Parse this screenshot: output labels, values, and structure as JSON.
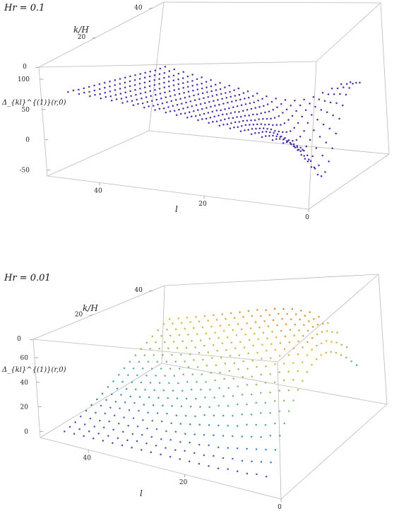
{
  "chart_data": [
    {
      "type": "scatter",
      "style": "3d-point-surface",
      "title": "Hr = 0.1",
      "xlabel": "k/H",
      "ylabel": "l",
      "zlabel": "Δ_{kl}^{(1)}(r,0)",
      "x_ticks": [
        "0",
        "20",
        "40"
      ],
      "y_ticks": [
        "40",
        "20",
        "0"
      ],
      "z_ticks": [
        "100",
        "50",
        "0",
        "-50"
      ],
      "xlim": [
        0,
        44
      ],
      "ylim": [
        0,
        50
      ],
      "zlim": [
        -60,
        120
      ],
      "coloring": "single color",
      "point_color": "#4a2ca8",
      "grid": false,
      "legend": "none",
      "x_values": [
        2,
        4,
        6,
        8,
        10,
        12,
        14,
        16,
        18,
        20,
        22,
        24,
        26,
        28,
        30,
        32,
        34,
        36,
        38,
        40
      ],
      "l_values": [
        4,
        6,
        8,
        10,
        12,
        14,
        16,
        18,
        20,
        22,
        24,
        26,
        28,
        30,
        32,
        34,
        36,
        38,
        40,
        42,
        44,
        46
      ],
      "z_grid": [
        [
          12,
          15,
          18,
          21,
          24,
          27,
          30,
          33,
          36,
          39,
          42,
          45,
          48,
          51,
          54,
          57,
          60,
          63,
          66,
          69,
          72,
          75
        ],
        [
          9,
          13,
          16,
          19,
          22,
          25,
          28,
          31,
          34,
          37,
          40,
          43,
          46,
          49,
          52,
          55,
          58,
          61,
          64,
          67,
          70,
          73
        ],
        [
          4,
          9,
          13,
          16,
          19,
          22,
          25,
          28,
          31,
          34,
          37,
          40,
          43,
          46,
          49,
          52,
          55,
          58,
          61,
          64,
          67,
          70
        ],
        [
          -3,
          4,
          9,
          13,
          17,
          20,
          23,
          26,
          29,
          32,
          35,
          38,
          41,
          44,
          47,
          50,
          53,
          56,
          59,
          62,
          65,
          68
        ],
        [
          -12,
          -3,
          4,
          9,
          14,
          17,
          21,
          24,
          27,
          30,
          33,
          36,
          39,
          42,
          45,
          48,
          51,
          54,
          57,
          60,
          63,
          66
        ],
        [
          -22,
          -11,
          -2,
          5,
          10,
          14,
          18,
          21,
          25,
          28,
          31,
          34,
          37,
          40,
          43,
          46,
          49,
          52,
          55,
          58,
          61,
          64
        ],
        [
          -33,
          -20,
          -9,
          -1,
          6,
          11,
          15,
          19,
          22,
          26,
          29,
          32,
          35,
          38,
          41,
          44,
          47,
          50,
          53,
          56,
          59,
          62
        ],
        [
          -45,
          -30,
          -17,
          -7,
          1,
          7,
          12,
          16,
          20,
          23,
          27,
          30,
          33,
          36,
          39,
          42,
          45,
          48,
          51,
          54,
          57,
          60
        ],
        [
          -50,
          -40,
          -26,
          -14,
          -5,
          3,
          9,
          13,
          17,
          21,
          24,
          28,
          31,
          34,
          37,
          40,
          43,
          46,
          49,
          52,
          55,
          58
        ],
        [
          -48,
          -45,
          -34,
          -21,
          -10,
          -2,
          5,
          10,
          15,
          19,
          22,
          26,
          29,
          32,
          35,
          38,
          41,
          44,
          47,
          50,
          53,
          56
        ],
        [
          -38,
          -44,
          -38,
          -27,
          -16,
          -6,
          2,
          8,
          12,
          16,
          20,
          24,
          27,
          30,
          33,
          36,
          39,
          42,
          45,
          48,
          51,
          54
        ],
        [
          -25,
          -35,
          -37,
          -30,
          -20,
          -10,
          -2,
          5,
          10,
          14,
          18,
          22,
          25,
          28,
          31,
          34,
          37,
          40,
          43,
          46,
          49,
          52
        ],
        [
          -10,
          -22,
          -30,
          -29,
          -22,
          -13,
          -5,
          2,
          7,
          12,
          16,
          20,
          23,
          26,
          29,
          32,
          35,
          38,
          41,
          44,
          47,
          50
        ],
        [
          5,
          -8,
          -19,
          -24,
          -21,
          -15,
          -8,
          -1,
          5,
          10,
          14,
          18,
          21,
          24,
          27,
          30,
          33,
          36,
          39,
          42,
          45,
          48
        ],
        [
          18,
          5,
          -7,
          -15,
          -17,
          -14,
          -9,
          -3,
          3,
          8,
          12,
          16,
          19,
          22,
          25,
          28,
          31,
          34,
          37,
          40,
          43,
          46
        ],
        [
          28,
          17,
          5,
          -5,
          -10,
          -11,
          -8,
          -4,
          1,
          6,
          10,
          14,
          17,
          20,
          23,
          26,
          29,
          32,
          35,
          38,
          41,
          44
        ],
        [
          33,
          25,
          14,
          4,
          -3,
          -6,
          -6,
          -3,
          0,
          4,
          8,
          12,
          15,
          18,
          21,
          24,
          27,
          30,
          33,
          36,
          39,
          42
        ],
        [
          35,
          30,
          21,
          12,
          4,
          -1,
          -3,
          -2,
          0,
          3,
          7,
          10,
          13,
          16,
          19,
          22,
          25,
          28,
          31,
          34,
          37,
          40
        ],
        [
          33,
          31,
          25,
          17,
          10,
          4,
          1,
          0,
          1,
          3,
          6,
          9,
          12,
          15,
          18,
          21,
          24,
          27,
          30,
          33,
          36,
          39
        ],
        [
          30,
          30,
          27,
          21,
          15,
          9,
          5,
          3,
          3,
          4,
          6,
          9,
          11,
          14,
          17,
          20,
          23,
          26,
          29,
          32,
          35,
          38
        ]
      ]
    },
    {
      "type": "scatter",
      "style": "3d-point-surface",
      "title": "Hr = 0.01",
      "xlabel": "k/H",
      "ylabel": "l",
      "zlabel": "Δ_{kl}^{(1)}(r,0)",
      "x_ticks": [
        "0",
        "20",
        "40"
      ],
      "y_ticks": [
        "40",
        "20",
        "0"
      ],
      "z_ticks": [
        "60",
        "40",
        "20",
        "0"
      ],
      "xlim": [
        0,
        44
      ],
      "ylim": [
        0,
        50
      ],
      "zlim": [
        -5,
        75
      ],
      "coloring": "rainbow by height",
      "color_scale": [
        "#4b2fa3",
        "#3f74c6",
        "#44a6b8",
        "#8fc057",
        "#e3b43a",
        "#e2702d",
        "#cc2a22"
      ],
      "grid": false,
      "legend": "none",
      "x_values": [
        2,
        4,
        6,
        8,
        10,
        12,
        14,
        16,
        18,
        20,
        22,
        24,
        26,
        28,
        30,
        32,
        34,
        36,
        38,
        40
      ],
      "l_values": [
        4,
        6,
        8,
        10,
        12,
        14,
        16,
        18,
        20,
        22,
        24,
        26,
        28,
        30,
        32,
        34,
        36,
        38,
        40,
        42,
        44,
        46
      ],
      "z_grid": [
        [
          3,
          3,
          2,
          2,
          2,
          1,
          1,
          1,
          1,
          1,
          1,
          1,
          1,
          1,
          1,
          1,
          1,
          1,
          1,
          1,
          1,
          1
        ],
        [
          9,
          8,
          7,
          6,
          6,
          5,
          5,
          4,
          4,
          4,
          3,
          3,
          3,
          3,
          3,
          2,
          2,
          2,
          2,
          2,
          2,
          2
        ],
        [
          14,
          13,
          12,
          11,
          10,
          9,
          8,
          8,
          7,
          7,
          6,
          6,
          5,
          5,
          5,
          4,
          4,
          4,
          4,
          3,
          3,
          3
        ],
        [
          20,
          19,
          17,
          16,
          15,
          14,
          13,
          12,
          11,
          10,
          9,
          9,
          8,
          8,
          7,
          7,
          6,
          6,
          6,
          5,
          5,
          5
        ],
        [
          25,
          24,
          22,
          21,
          20,
          18,
          17,
          16,
          15,
          14,
          13,
          12,
          11,
          11,
          10,
          9,
          9,
          8,
          8,
          8,
          7,
          7
        ],
        [
          30,
          29,
          27,
          26,
          24,
          23,
          21,
          20,
          19,
          18,
          16,
          15,
          14,
          14,
          13,
          12,
          12,
          11,
          11,
          10,
          10,
          9
        ],
        [
          34,
          33,
          32,
          30,
          29,
          27,
          26,
          24,
          23,
          21,
          20,
          19,
          18,
          17,
          16,
          15,
          14,
          14,
          13,
          12,
          12,
          11
        ],
        [
          38,
          37,
          36,
          34,
          33,
          31,
          30,
          28,
          27,
          25,
          24,
          22,
          21,
          20,
          19,
          18,
          17,
          16,
          15,
          15,
          14,
          13
        ],
        [
          41,
          41,
          40,
          38,
          37,
          35,
          34,
          32,
          30,
          29,
          27,
          26,
          25,
          23,
          22,
          21,
          20,
          19,
          18,
          17,
          16,
          16
        ],
        [
          44,
          44,
          43,
          42,
          40,
          39,
          37,
          36,
          34,
          33,
          31,
          29,
          28,
          27,
          25,
          24,
          23,
          22,
          21,
          20,
          19,
          18
        ],
        [
          46,
          47,
          46,
          45,
          44,
          42,
          41,
          39,
          38,
          36,
          34,
          33,
          31,
          30,
          29,
          27,
          26,
          25,
          24,
          23,
          22,
          21
        ],
        [
          47,
          49,
          49,
          48,
          47,
          45,
          44,
          42,
          41,
          39,
          38,
          36,
          35,
          33,
          32,
          30,
          29,
          28,
          27,
          26,
          25,
          24
        ],
        [
          47,
          50,
          51,
          50,
          49,
          48,
          47,
          45,
          44,
          42,
          41,
          39,
          38,
          36,
          35,
          33,
          32,
          31,
          30,
          29,
          28,
          27
        ],
        [
          46,
          50,
          52,
          52,
          51,
          50,
          49,
          48,
          47,
          45,
          44,
          42,
          41,
          39,
          38,
          36,
          35,
          34,
          33,
          32,
          31,
          30
        ],
        [
          44,
          49,
          52,
          53,
          53,
          52,
          51,
          50,
          49,
          48,
          46,
          45,
          44,
          42,
          41,
          39,
          38,
          37,
          36,
          35,
          34,
          33
        ],
        [
          41,
          48,
          52,
          54,
          54,
          54,
          53,
          52,
          51,
          50,
          49,
          48,
          46,
          45,
          44,
          42,
          41,
          40,
          39,
          38,
          37,
          36
        ],
        [
          37,
          45,
          51,
          54,
          55,
          55,
          55,
          54,
          53,
          52,
          51,
          50,
          49,
          48,
          46,
          45,
          44,
          43,
          42,
          41,
          40,
          39
        ],
        [
          33,
          42,
          49,
          53,
          55,
          56,
          56,
          56,
          55,
          54,
          53,
          52,
          51,
          50,
          49,
          48,
          47,
          46,
          45,
          44,
          43,
          42
        ],
        [
          28,
          38,
          46,
          51,
          54,
          56,
          57,
          57,
          57,
          56,
          55,
          55,
          54,
          53,
          52,
          51,
          50,
          49,
          48,
          47,
          46,
          45
        ],
        [
          23,
          34,
          43,
          49,
          53,
          56,
          57,
          58,
          58,
          58,
          57,
          57,
          56,
          55,
          54,
          53,
          52,
          51,
          50,
          49,
          48,
          47
        ]
      ]
    }
  ]
}
